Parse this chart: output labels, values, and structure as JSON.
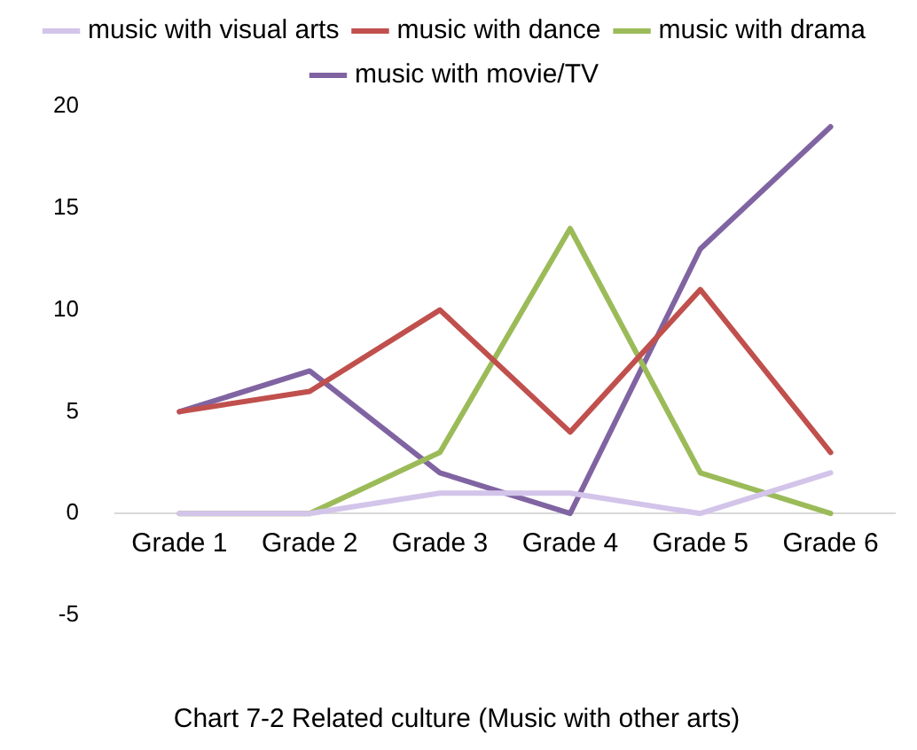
{
  "chart_data": {
    "type": "line",
    "title": "Chart 7-2 Related culture (Music with other arts)",
    "categories": [
      "Grade 1",
      "Grade 2",
      "Grade 3",
      "Grade 4",
      "Grade 5",
      "Grade 6"
    ],
    "series": [
      {
        "name": "music with visual arts",
        "color": "#d3c4ea",
        "values": [
          0,
          0,
          1,
          1,
          0,
          2
        ]
      },
      {
        "name": "music with dance",
        "color": "#c0504d",
        "values": [
          5,
          6,
          10,
          4,
          11,
          3
        ]
      },
      {
        "name": "music with drama",
        "color": "#9bbb59",
        "values": [
          0,
          0,
          3,
          14,
          2,
          0
        ]
      },
      {
        "name": "music with movie/TV",
        "color": "#8064a2",
        "values": [
          5,
          7,
          2,
          0,
          13,
          19
        ]
      }
    ],
    "ylim": [
      -5,
      20
    ],
    "yticks": [
      -5,
      0,
      5,
      10,
      15,
      20
    ],
    "grid": false,
    "legend": "top",
    "marker": "none",
    "line_style": "solid"
  }
}
